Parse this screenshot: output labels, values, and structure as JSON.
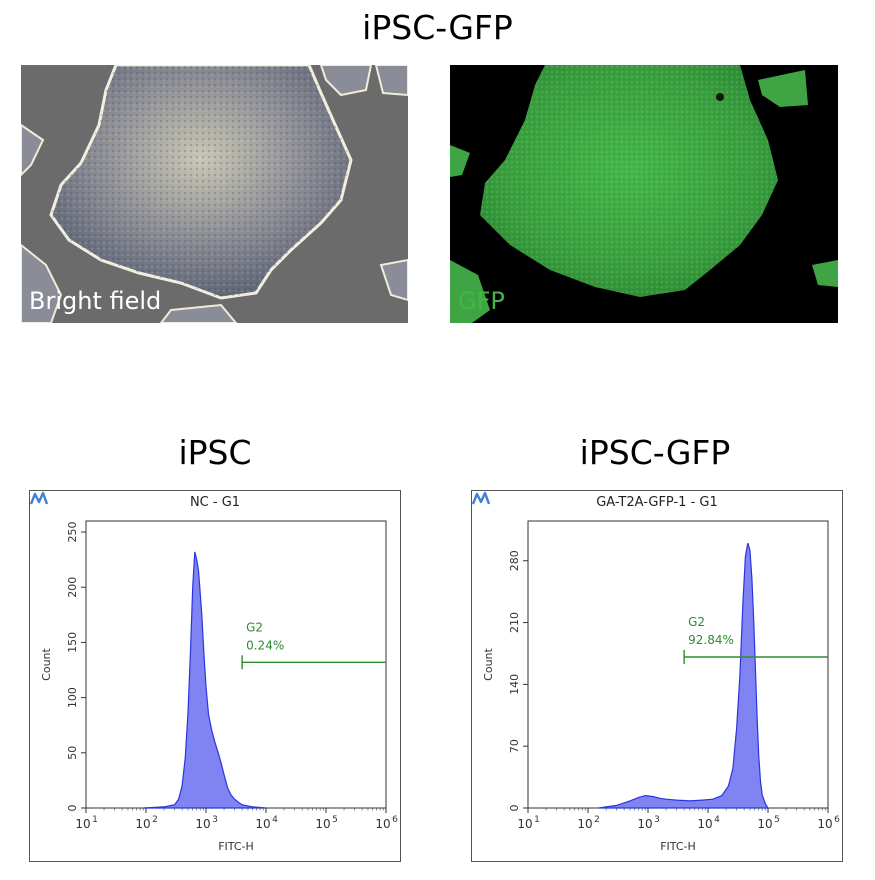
{
  "figure": {
    "top_title": "iPSC-GFP",
    "brightfield_label": "Bright field",
    "gfp_label": "GFP"
  },
  "colors": {
    "histogram_fill": "#7f84f2",
    "histogram_edge": "#2a35e0",
    "gate": "#2e8b2e",
    "gfp": "#3fb845",
    "brightfield_bg": "#6b6b6b"
  },
  "icons": {
    "panel_logo": "flow-cytometry-logo-icon"
  },
  "chart_data": [
    {
      "type": "area",
      "heading": "iPSC",
      "title": "NC - G1",
      "xlabel": "FITC-H",
      "ylabel": "Count",
      "x_scale": "log",
      "x_ticks": [
        "10",
        "10",
        "10",
        "10",
        "10",
        "10"
      ],
      "x_tick_exponents": [
        "1",
        "2",
        "3",
        "4",
        "5",
        "6"
      ],
      "xlim": [
        10,
        1000000
      ],
      "ylim": [
        0,
        260
      ],
      "y_ticks": [
        "0",
        "50",
        "100",
        "150",
        "200",
        "250"
      ],
      "y_tick_values": [
        0,
        50,
        100,
        150,
        200,
        250
      ],
      "series": [
        {
          "x": [
            90,
            200,
            300,
            350,
            400,
            450,
            500,
            550,
            600,
            650,
            700,
            750,
            800,
            850,
            900,
            950,
            1000,
            1100,
            1250,
            1400,
            1600,
            1800,
            2000,
            2300,
            2600,
            3000,
            3500,
            4000,
            6000,
            10000
          ],
          "y": [
            0,
            1,
            3,
            8,
            20,
            45,
            85,
            140,
            200,
            232,
            225,
            215,
            195,
            175,
            150,
            128,
            110,
            85,
            70,
            60,
            50,
            40,
            30,
            18,
            12,
            8,
            5,
            3,
            1,
            0
          ]
        }
      ],
      "gate": {
        "name": "G2",
        "percent": "0.24%",
        "from": 4000,
        "to": 1000000,
        "level": 132
      }
    },
    {
      "type": "area",
      "heading": "iPSC-GFP",
      "title": "GA-T2A-GFP-1 - G1",
      "xlabel": "FITC-H",
      "ylabel": "Count",
      "x_scale": "log",
      "x_ticks": [
        "10",
        "10",
        "10",
        "10",
        "10",
        "10"
      ],
      "x_tick_exponents": [
        "1",
        "2",
        "3",
        "4",
        "5",
        "6"
      ],
      "xlim": [
        10,
        1000000
      ],
      "ylim": [
        0,
        325
      ],
      "y_ticks": [
        "0",
        "70",
        "140",
        "210",
        "280"
      ],
      "y_tick_values": [
        0,
        70,
        140,
        210,
        280
      ],
      "series": [
        {
          "x": [
            150,
            300,
            500,
            700,
            900,
            1200,
            1600,
            2000,
            3000,
            5000,
            8000,
            12000,
            17000,
            22000,
            26000,
            30000,
            34000,
            38000,
            42000,
            46000,
            50000,
            54000,
            58000,
            62000,
            66000,
            70000,
            75000,
            80000,
            90000,
            100000
          ],
          "y": [
            0,
            3,
            8,
            12,
            14,
            13,
            11,
            10,
            9,
            8,
            9,
            10,
            14,
            25,
            45,
            90,
            150,
            230,
            285,
            300,
            292,
            260,
            210,
            155,
            100,
            60,
            30,
            15,
            5,
            0
          ]
        }
      ],
      "gate": {
        "name": "G2",
        "percent": "92.84%",
        "from": 4000,
        "to": 1000000,
        "level": 171
      }
    }
  ]
}
